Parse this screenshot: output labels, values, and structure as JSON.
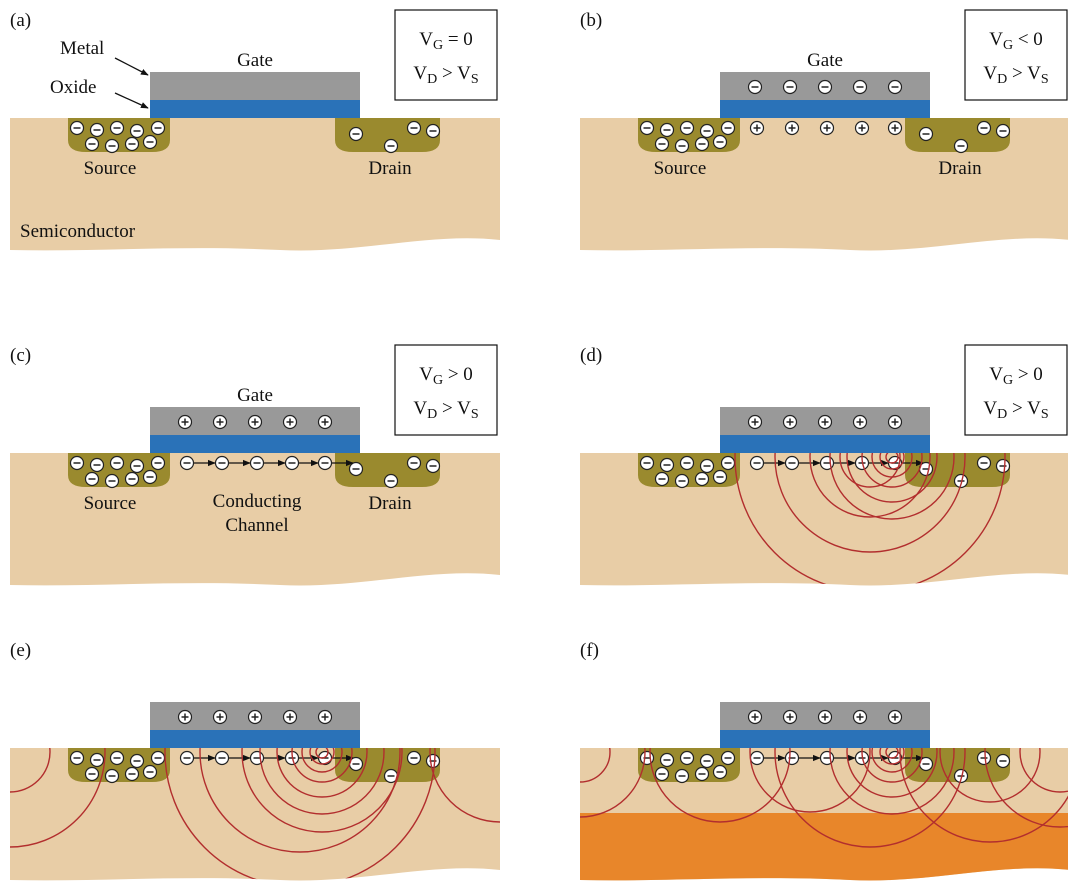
{
  "panels": [
    {
      "label": "(a)",
      "gate": "Gate",
      "metal": "Metal",
      "oxide": "Oxide",
      "source": "Source",
      "drain": "Drain",
      "substrate": "Semiconductor",
      "condition": [
        [
          "V",
          "G",
          " = 0"
        ],
        [
          "V",
          "D",
          " > V",
          "S"
        ]
      ]
    },
    {
      "label": "(b)",
      "gate": "Gate",
      "source": "Source",
      "drain": "Drain",
      "condition": [
        [
          "V",
          "G",
          " < 0"
        ],
        [
          "V",
          "D",
          " > V",
          "S"
        ]
      ]
    },
    {
      "label": "(c)",
      "gate": "Gate",
      "source": "Source",
      "drain": "Drain",
      "channel": [
        "Conducting",
        "Channel"
      ],
      "condition": [
        [
          "V",
          "G",
          " > 0"
        ],
        [
          "V",
          "D",
          " > V",
          "S"
        ]
      ]
    },
    {
      "label": "(d)",
      "condition": [
        [
          "V",
          "G",
          " > 0"
        ],
        [
          "V",
          "D",
          " > V",
          "S"
        ]
      ]
    },
    {
      "label": "(e)"
    },
    {
      "label": "(f)"
    }
  ]
}
